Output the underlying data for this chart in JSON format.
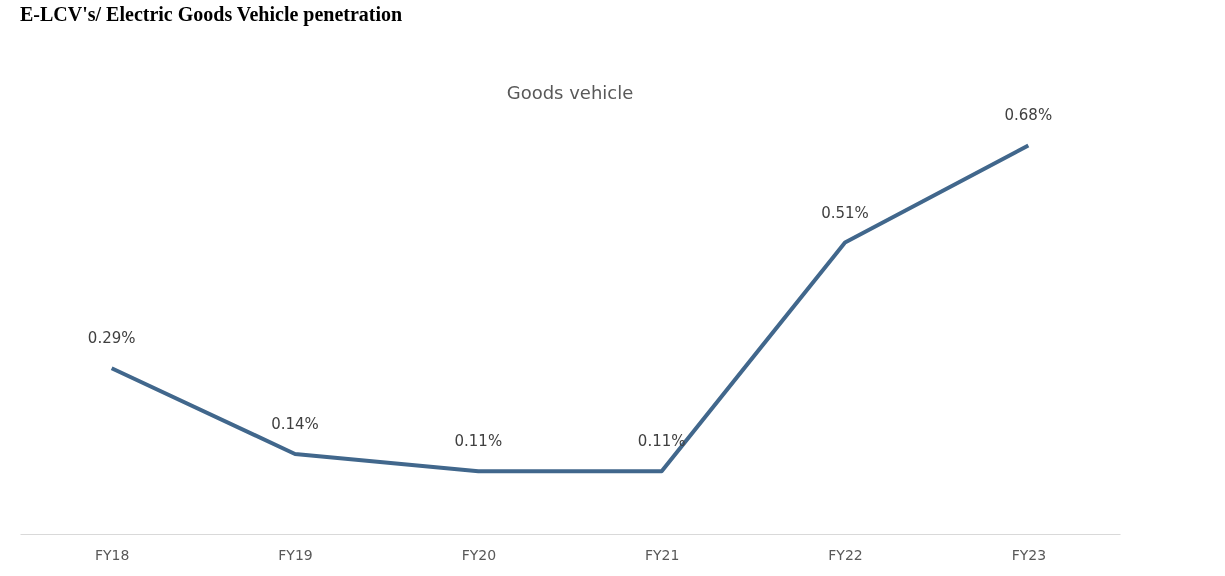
{
  "chart_data": {
    "type": "line",
    "title": "E-LCV's/ Electric Goods Vehicle penetration",
    "subtitle": "Goods vehicle",
    "categories": [
      "FY18",
      "FY19",
      "FY20",
      "FY21",
      "FY22",
      "FY23"
    ],
    "series": [
      {
        "color": "#41678c",
        "values": [
          0.29,
          0.14,
          0.11,
          0.11,
          0.51,
          0.68
        ],
        "value_labels": [
          "0.29%",
          "0.14%",
          "0.11%",
          "0.11%",
          "0.51%",
          "0.68%"
        ]
      }
    ],
    "marker": "none",
    "line_style": "solid"
  }
}
